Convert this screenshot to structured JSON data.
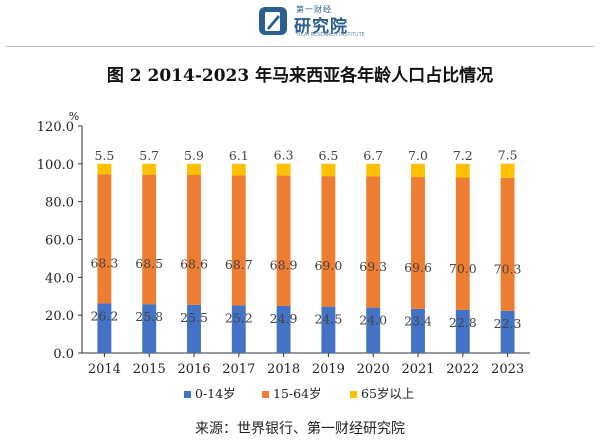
{
  "logo": {
    "small_text": "第一财经",
    "main_text": "研究院",
    "sub_text": "YICAI RESEARCH INSTITUTE"
  },
  "title": "图 2 2014-2023 年马来西亚各年龄人口占比情况",
  "source": "来源：世界银行、第一财经研究院",
  "colors": {
    "s0_14": "#4472c4",
    "s15_64": "#ed7d31",
    "s65": "#ffc000"
  },
  "chart_data": {
    "type": "bar",
    "stacked": true,
    "categories": [
      "2014",
      "2015",
      "2016",
      "2017",
      "2018",
      "2019",
      "2020",
      "2021",
      "2022",
      "2023"
    ],
    "series": [
      {
        "name": "0-14岁",
        "values": [
          26.2,
          25.8,
          25.5,
          25.2,
          24.9,
          24.5,
          24.0,
          23.4,
          22.8,
          22.3
        ],
        "labels": [
          "26.2",
          "25.8",
          "25.5",
          "25.2",
          "24.9",
          "24.5",
          "24.0",
          "23.4",
          "22.8",
          "22.3"
        ]
      },
      {
        "name": "15-64岁",
        "values": [
          68.3,
          68.5,
          68.6,
          68.7,
          68.9,
          69.0,
          69.3,
          69.6,
          70.0,
          70.3
        ],
        "labels": [
          "68.3",
          "68.5",
          "68.6",
          "68.7",
          "68.9",
          "69.0",
          "69.3",
          "69.6",
          "70.0",
          "70.3"
        ]
      },
      {
        "name": "65岁以上",
        "values": [
          5.5,
          5.7,
          5.9,
          6.1,
          6.3,
          6.5,
          6.7,
          7.0,
          7.2,
          7.5
        ],
        "labels": [
          "5.5",
          "5.7",
          "5.9",
          "6.1",
          "6.3",
          "6.5",
          "6.7",
          "7.0",
          "7.2",
          "7.5"
        ]
      }
    ],
    "ylim": [
      0,
      120
    ],
    "yticks": [
      0,
      20,
      40,
      60,
      80,
      100,
      120
    ],
    "ytick_labels": [
      "0.0",
      "20.0",
      "40.0",
      "60.0",
      "80.0",
      "100.0",
      "120.0"
    ],
    "yunit": "%",
    "legend_position": "bottom",
    "grid": false
  }
}
